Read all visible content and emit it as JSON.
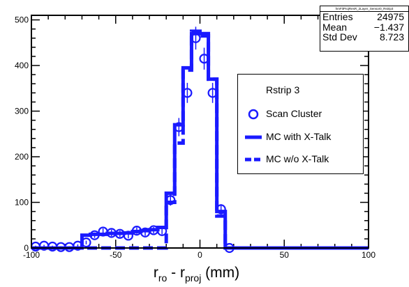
{
  "stats_box": {
    "title": "hmFitProjResR_2Layer_Sensor0_Rstrip3",
    "rows": [
      {
        "label": "Entries",
        "value": "24975"
      },
      {
        "label": "Mean",
        "value": "−1.437"
      },
      {
        "label": "Std Dev",
        "value": "8.723"
      }
    ]
  },
  "legend": {
    "header": "Rstrip 3",
    "items": [
      {
        "label": "Scan Cluster",
        "style": "open-circle"
      },
      {
        "label": "MC with X-Talk",
        "style": "solid"
      },
      {
        "label": "MC w/o X-Talk",
        "style": "dashed"
      }
    ]
  },
  "colors": {
    "accent": "#1a1aff",
    "axis": "#000000",
    "background": "#ffffff"
  },
  "chart_data": {
    "type": "line",
    "title": "",
    "xlabel": "r_ro - r_proj (mm)",
    "xlabel_parts": {
      "a": "r",
      "a_sub": "ro",
      "mid": " - r",
      "b_sub": "proj",
      "unit": " (mm)"
    },
    "ylabel": "",
    "xlim": [
      -100,
      100
    ],
    "ylim": [
      0,
      510
    ],
    "xticks": [
      -100,
      -50,
      0,
      50,
      100
    ],
    "yticks": [
      0,
      100,
      200,
      300,
      400,
      500
    ],
    "xtick_labels": [
      "-100",
      "-50",
      "0",
      "50",
      "100"
    ],
    "ytick_labels": [
      "0",
      "100",
      "200",
      "300",
      "400",
      "500"
    ],
    "bin_edges": [
      -100,
      -95,
      -90,
      -85,
      -80,
      -75,
      -70,
      -65,
      -60,
      -55,
      -50,
      -45,
      -40,
      -35,
      -30,
      -25,
      -20,
      -15,
      -10,
      -5,
      0,
      5,
      10,
      15,
      20,
      25,
      30,
      35,
      40,
      45,
      50,
      55,
      60,
      65,
      70,
      75,
      80,
      85,
      90,
      95,
      100
    ],
    "series": [
      {
        "name": "Scan Cluster",
        "style": "markers",
        "x": [
          -97.5,
          -92.5,
          -87.5,
          -82.5,
          -77.5,
          -72.5,
          -67.5,
          -62.5,
          -57.5,
          -52.5,
          -47.5,
          -42.5,
          -37.5,
          -32.5,
          -27.5,
          -22.5,
          -17.5,
          -12.5,
          -7.5,
          -2.5,
          2.5,
          7.5,
          12.5,
          17.5
        ],
        "y": [
          3,
          5,
          3,
          2,
          2,
          5,
          12,
          28,
          36,
          33,
          31,
          27,
          38,
          34,
          39,
          37,
          105,
          265,
          340,
          460,
          415,
          340,
          85,
          0
        ],
        "yerr": [
          2,
          2,
          2,
          2,
          2,
          3,
          4,
          6,
          7,
          7,
          7,
          6,
          7,
          7,
          7,
          7,
          12,
          20,
          22,
          25,
          24,
          22,
          11,
          0
        ]
      },
      {
        "name": "MC with X-Talk",
        "style": "solid-step",
        "values": [
          0,
          0,
          0,
          0,
          0,
          0,
          28,
          30,
          30,
          32,
          32,
          33,
          36,
          38,
          40,
          45,
          120,
          270,
          395,
          470,
          470,
          370,
          80,
          0,
          0,
          0,
          0,
          0,
          0,
          0,
          0,
          0,
          0,
          0,
          0,
          0,
          0,
          0,
          0,
          0
        ]
      },
      {
        "name": "MC w/o X-Talk",
        "style": "dashed-step",
        "values": [
          0,
          0,
          0,
          0,
          0,
          0,
          0,
          0,
          0,
          0,
          0,
          0,
          0,
          0,
          0,
          0,
          100,
          230,
          390,
          475,
          465,
          370,
          70,
          0,
          0,
          0,
          0,
          0,
          0,
          0,
          0,
          0,
          0,
          0,
          0,
          0,
          0,
          0,
          0,
          0
        ]
      }
    ]
  }
}
